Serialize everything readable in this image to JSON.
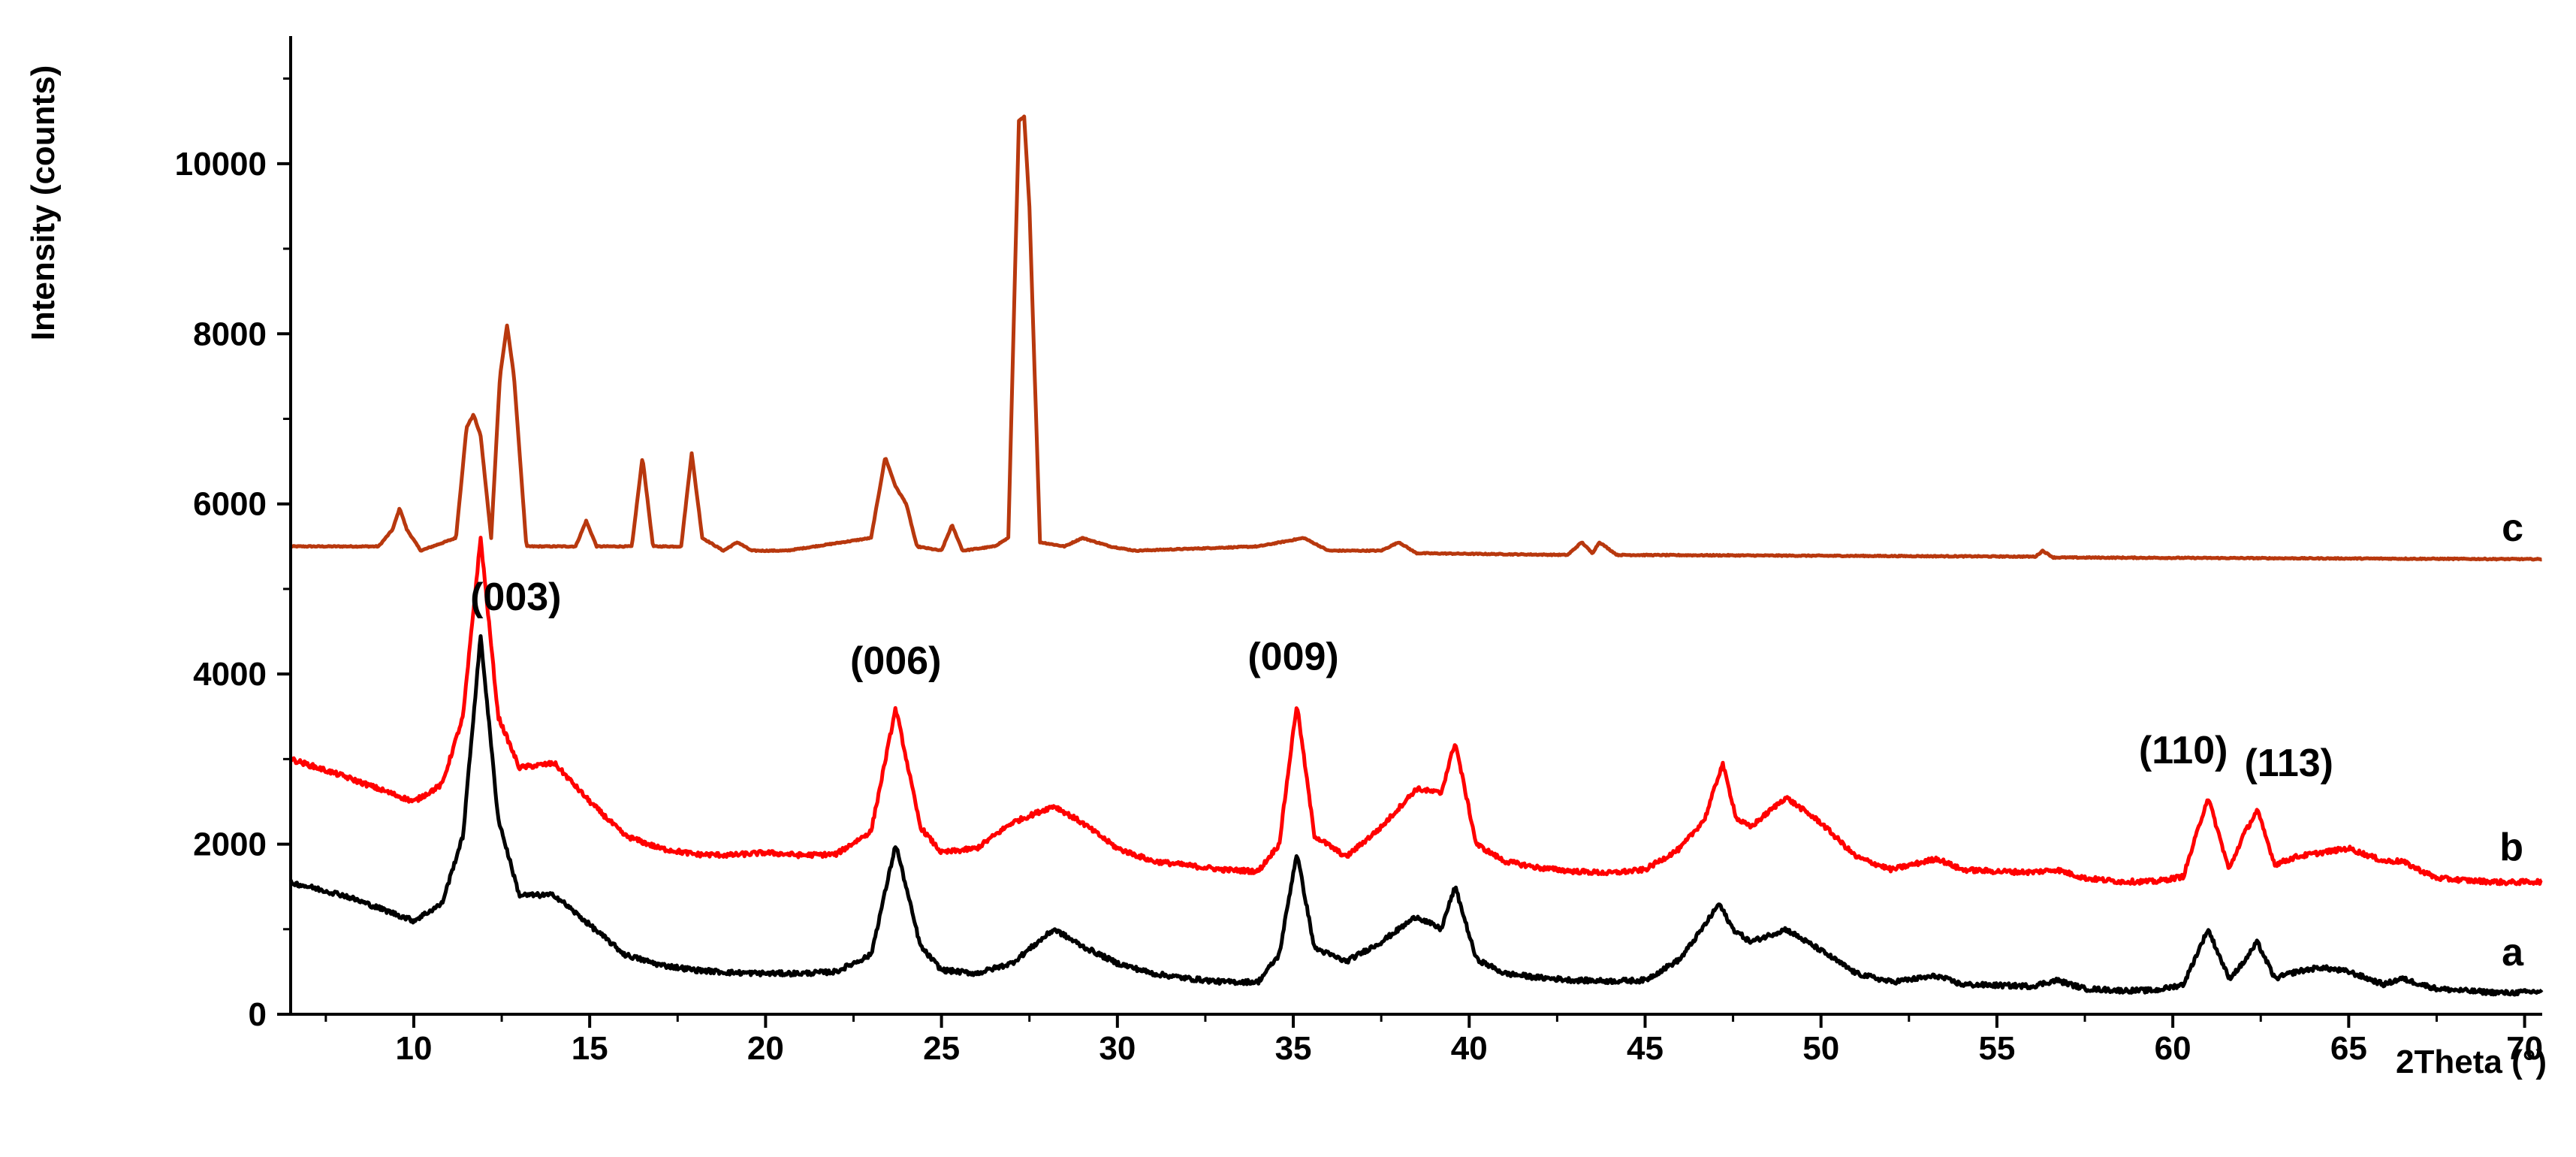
{
  "chart_data": {
    "type": "line",
    "title": "",
    "xlabel": "2Theta (°)",
    "ylabel": "Intensity (counts)",
    "xlim": [
      6.5,
      70.5
    ],
    "ylim": [
      0,
      11500
    ],
    "x_ticks": [
      10,
      15,
      20,
      25,
      30,
      35,
      40,
      45,
      50,
      55,
      60,
      65,
      70
    ],
    "x_tick_labels": [
      "10",
      "15",
      "20",
      "25",
      "30",
      "35",
      "40",
      "45",
      "50",
      "55",
      "60",
      "65",
      "70"
    ],
    "y_ticks": [
      0,
      2000,
      4000,
      6000,
      8000,
      10000
    ],
    "y_tick_labels": [
      "0",
      "2000",
      "4000",
      "6000",
      "8000",
      "10000"
    ],
    "grid": false,
    "series": [
      {
        "name": "a",
        "color": "#000000",
        "x": [
          6.5,
          8,
          9,
          10,
          10.8,
          11.4,
          11.9,
          12.4,
          13,
          14,
          15,
          16,
          17,
          18,
          19,
          20,
          21,
          22,
          23,
          23.7,
          24.4,
          25,
          26,
          27,
          28.2,
          29,
          30,
          31,
          32,
          33,
          34,
          34.6,
          35.1,
          35.6,
          36.5,
          37.5,
          38.5,
          39.2,
          39.6,
          40.2,
          41,
          42,
          43,
          44,
          45,
          46,
          46.7,
          47.1,
          47.5,
          48,
          49,
          50,
          51,
          52,
          53.3,
          54,
          55,
          56,
          56.7,
          57.5,
          58.5,
          59.5,
          60.3,
          61,
          61.6,
          62,
          62.4,
          62.9,
          63.5,
          64.2,
          65,
          66,
          66.5,
          67.5,
          68.5,
          69.5,
          70.5
        ],
        "y": [
          1550,
          1400,
          1250,
          1100,
          1300,
          2100,
          4450,
          2300,
          1400,
          1400,
          1050,
          700,
          580,
          520,
          490,
          480,
          480,
          500,
          700,
          2000,
          800,
          520,
          480,
          600,
          1000,
          800,
          600,
          480,
          420,
          380,
          380,
          700,
          1900,
          780,
          620,
          850,
          1150,
          1000,
          1500,
          650,
          480,
          430,
          400,
          390,
          400,
          650,
          1050,
          1300,
          1000,
          850,
          1000,
          750,
          480,
          380,
          450,
          350,
          340,
          330,
          400,
          300,
          280,
          280,
          350,
          1000,
          420,
          600,
          850,
          420,
          500,
          550,
          500,
          350,
          420,
          300,
          270,
          250,
          270
        ]
      },
      {
        "name": "b",
        "color": "#ff0000",
        "x": [
          6.5,
          8,
          9,
          10,
          10.8,
          11.4,
          11.9,
          12.4,
          13,
          14,
          15,
          16,
          17,
          18,
          19,
          20,
          21,
          22,
          23,
          23.7,
          24.4,
          25,
          26,
          27,
          28.2,
          29,
          30,
          31,
          32,
          33,
          34,
          34.6,
          35.1,
          35.6,
          36.5,
          37.5,
          38.5,
          39.2,
          39.6,
          40.2,
          41,
          42,
          43,
          44,
          45,
          46,
          46.7,
          47.2,
          47.6,
          48,
          49,
          50,
          51,
          52,
          53.3,
          54,
          55,
          56,
          56.7,
          57.5,
          58.5,
          59.5,
          60.3,
          61,
          61.6,
          62,
          62.4,
          62.9,
          63.5,
          64.2,
          65,
          66,
          66.5,
          67.5,
          68.5,
          69.5,
          70.5
        ],
        "y": [
          3000,
          2800,
          2650,
          2500,
          2700,
          3500,
          5600,
          3500,
          2900,
          2950,
          2500,
          2100,
          1950,
          1880,
          1870,
          1900,
          1870,
          1880,
          2150,
          3600,
          2200,
          1900,
          1950,
          2250,
          2450,
          2250,
          1950,
          1800,
          1750,
          1700,
          1680,
          2000,
          3650,
          2100,
          1850,
          2200,
          2650,
          2600,
          3200,
          2000,
          1800,
          1720,
          1680,
          1660,
          1700,
          1950,
          2300,
          2950,
          2300,
          2200,
          2550,
          2250,
          1850,
          1700,
          1830,
          1700,
          1680,
          1670,
          1700,
          1600,
          1560,
          1560,
          1620,
          2550,
          1700,
          2100,
          2400,
          1760,
          1850,
          1900,
          1950,
          1800,
          1800,
          1600,
          1570,
          1550,
          1560
        ]
      },
      {
        "name": "c",
        "color": "#b8380e",
        "x": [
          6.5,
          9,
          9.4,
          9.6,
          9.8,
          10.2,
          11.2,
          11.5,
          11.7,
          11.9,
          12.2,
          12.45,
          12.65,
          12.85,
          13.2,
          14.6,
          14.9,
          15.2,
          16.2,
          16.5,
          16.8,
          17.6,
          17.9,
          18.2,
          18.8,
          19.2,
          19.6,
          20.2,
          20.6,
          23,
          23.4,
          23.7,
          24,
          24.3,
          25,
          25.3,
          25.6,
          26.5,
          26.9,
          27.2,
          27.35,
          27.5,
          27.8,
          28.5,
          29,
          29.8,
          30.5,
          34,
          35.3,
          36,
          37.5,
          38,
          38.5,
          42.8,
          43.2,
          43.5,
          43.7,
          44.2,
          56.1,
          56.3,
          56.6,
          70.5
        ],
        "y": [
          5500,
          5500,
          5700,
          5950,
          5700,
          5450,
          5600,
          6900,
          7050,
          6800,
          5600,
          7500,
          8100,
          7500,
          5500,
          5500,
          5800,
          5500,
          5500,
          6550,
          5500,
          5500,
          6600,
          5600,
          5450,
          5550,
          5450,
          5450,
          5450,
          5600,
          6550,
          6200,
          6000,
          5500,
          5450,
          5750,
          5450,
          5500,
          5600,
          10500,
          10550,
          9500,
          5550,
          5500,
          5600,
          5500,
          5450,
          5500,
          5600,
          5450,
          5450,
          5550,
          5420,
          5400,
          5550,
          5420,
          5550,
          5400,
          5380,
          5450,
          5370,
          5350
        ]
      }
    ],
    "series_labels": [
      "a",
      "b",
      "c"
    ],
    "annotations": [
      {
        "text": "(003)",
        "x": 12.9,
        "y": 4750
      },
      {
        "text": "(006)",
        "x": 23.7,
        "y": 4000
      },
      {
        "text": "(009)",
        "x": 35.0,
        "y": 4050
      },
      {
        "text": "(110)",
        "x": 60.3,
        "y": 2950
      },
      {
        "text": "(113)",
        "x": 63.3,
        "y": 2800
      }
    ]
  }
}
